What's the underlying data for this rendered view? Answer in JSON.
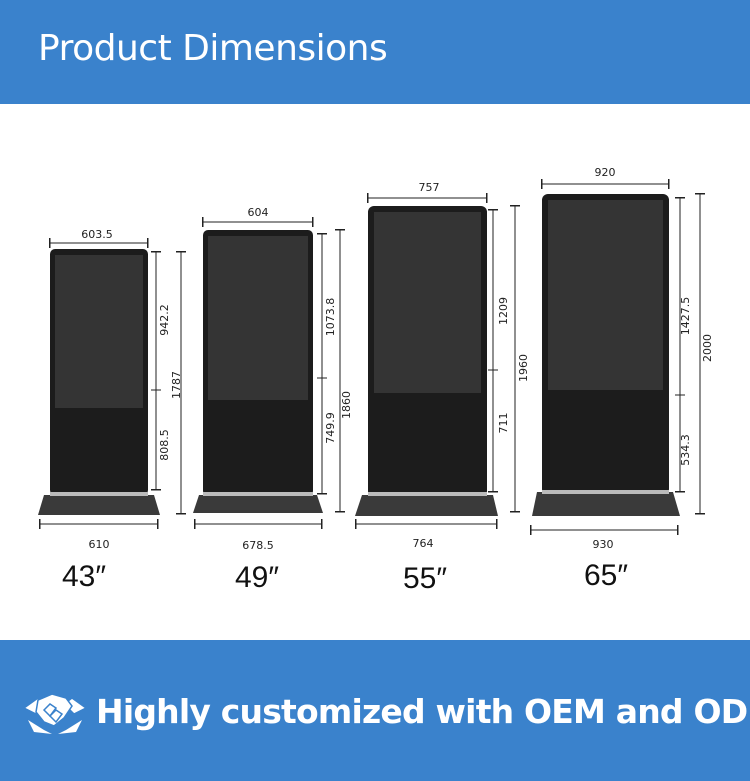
{
  "header": {
    "title": "Product Dimensions"
  },
  "footer": {
    "text": "Highly customized with OEM and ODM",
    "icon": "handshake-icon"
  },
  "colors": {
    "banner": "#3a82cc",
    "screen": "#2f2f2f",
    "body": "#1e1e1e",
    "base": "#3a3a3a"
  },
  "models": [
    {
      "size": "43″",
      "screen_width": "603.5",
      "base_width": "610",
      "screen_height": "942.2",
      "lower_height": "808.5",
      "total_height": "1787"
    },
    {
      "size": "49″",
      "screen_width": "604",
      "base_width": "678.5",
      "screen_height": "1073.8",
      "lower_height": "749.9",
      "total_height": "1860"
    },
    {
      "size": "55″",
      "screen_width": "757",
      "base_width": "764",
      "screen_height": "1209",
      "lower_height": "711",
      "total_height": "1960"
    },
    {
      "size": "65″",
      "screen_width": "920",
      "base_width": "930",
      "screen_height": "1427.5",
      "lower_height": "534.3",
      "total_height": "2000"
    }
  ]
}
